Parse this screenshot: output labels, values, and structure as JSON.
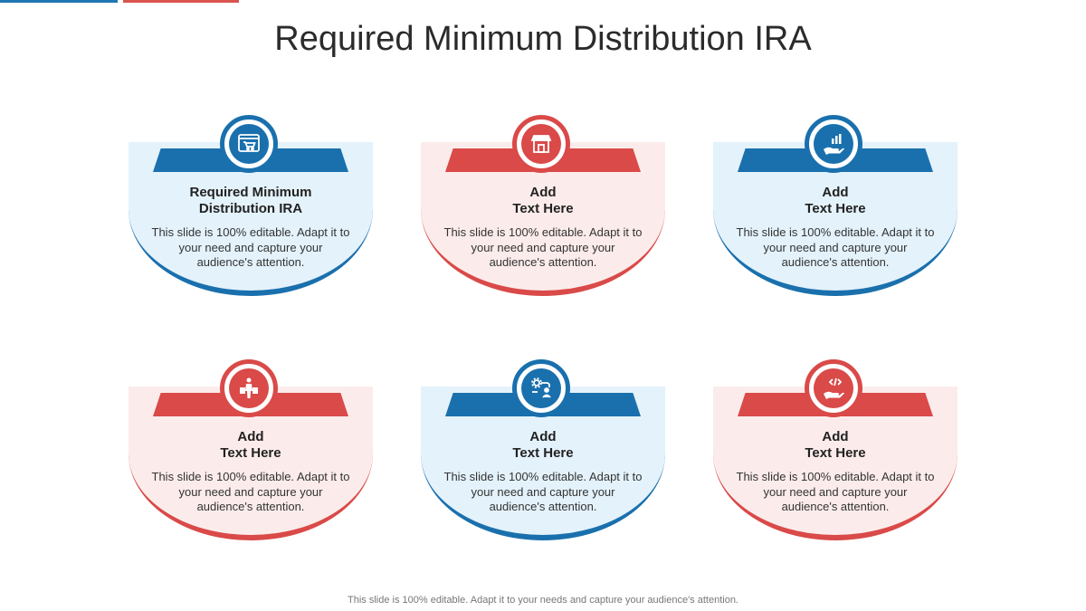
{
  "title": "Required Minimum Distribution IRA",
  "footer": "This slide is 100% editable. Adapt it to your needs and capture your audience's attention.",
  "colors": {
    "blue": "#1a70ad",
    "red": "#d94a48",
    "blue_bg": "#e4f2fb",
    "red_bg": "#fbeceb"
  },
  "cards": [
    {
      "theme": "blue",
      "icon": "shopping-cart-window-icon",
      "heading_line1": "Required Minimum",
      "heading_line2": "Distribution IRA",
      "body": "This slide is 100% editable.  Adapt it to your need and capture your audience's attention."
    },
    {
      "theme": "red",
      "icon": "storefront-icon",
      "heading_line1": "Add",
      "heading_line2": "Text Here",
      "body": "This slide is 100% editable.  Adapt it to your need and capture your audience's attention."
    },
    {
      "theme": "blue",
      "icon": "hand-bar-chart-icon",
      "heading_line1": "Add",
      "heading_line2": "Text Here",
      "body": "This slide is 100% editable.  Adapt it to your need and capture your audience's attention."
    },
    {
      "theme": "red",
      "icon": "shopper-bags-icon",
      "heading_line1": "Add",
      "heading_line2": "Text Here",
      "body": "This slide is 100% editable.  Adapt it to your need and capture your audience's attention."
    },
    {
      "theme": "blue",
      "icon": "gear-user-workflow-icon",
      "heading_line1": "Add",
      "heading_line2": "Text Here",
      "body": "This slide is 100% editable.  Adapt it to your need and capture your audience's attention."
    },
    {
      "theme": "red",
      "icon": "hand-code-icon",
      "heading_line1": "Add",
      "heading_line2": "Text Here",
      "body": "This slide is 100% editable.  Adapt it to your need and capture your audience's attention."
    }
  ]
}
